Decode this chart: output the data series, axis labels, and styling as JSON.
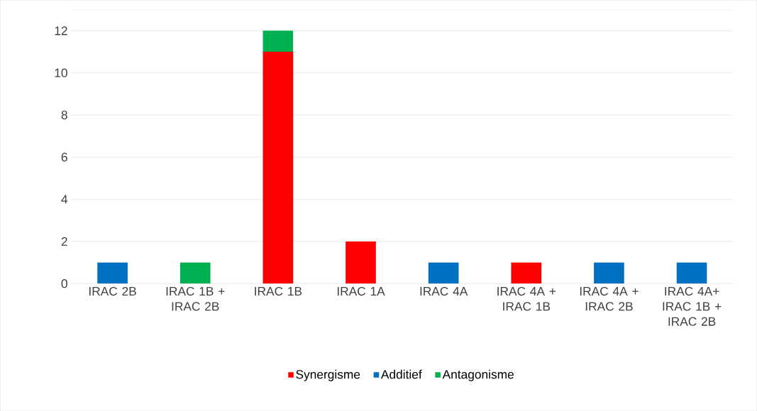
{
  "chart_data": {
    "type": "bar",
    "stacked": true,
    "categories": [
      "IRAC 2B",
      "IRAC 1B + IRAC 2B",
      "IRAC 1B",
      "IRAC 1A",
      "IRAC 4A",
      "IRAC 4A + IRAC 1B",
      "IRAC 4A + IRAC 2B",
      "IRAC 4A+ IRAC 1B + IRAC 2B"
    ],
    "series": [
      {
        "name": "Synergisme",
        "color": "#ff0000",
        "values": [
          0,
          0,
          11,
          2,
          0,
          1,
          0,
          0
        ]
      },
      {
        "name": "Additief",
        "color": "#0070c0",
        "values": [
          1,
          0,
          0,
          0,
          1,
          0,
          1,
          1
        ]
      },
      {
        "name": "Antagonisme",
        "color": "#00b050",
        "values": [
          0,
          1,
          1,
          0,
          0,
          0,
          0,
          0
        ]
      }
    ],
    "ylim": [
      0,
      13
    ],
    "yticks": [
      0,
      2,
      4,
      6,
      8,
      10,
      12
    ],
    "grid": "y",
    "legend": "bottom"
  }
}
